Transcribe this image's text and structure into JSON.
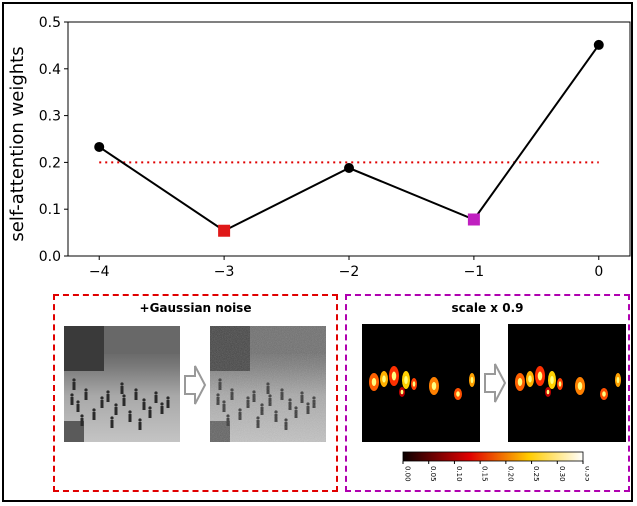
{
  "chart_data": {
    "type": "line",
    "ylabel": "self-attention weights",
    "xlim": [
      -4.25,
      0.25
    ],
    "ylim": [
      0.0,
      0.5
    ],
    "xticks": [
      "−4",
      "−3",
      "−2",
      "−1",
      "0"
    ],
    "yticks": [
      "0.0",
      "0.1",
      "0.2",
      "0.3",
      "0.4",
      "0.5"
    ],
    "grid": false,
    "series": [
      {
        "type": "line",
        "x": [
          -4,
          -3,
          -2,
          -1,
          0
        ],
        "y": [
          0.233,
          0.054,
          0.188,
          0.078,
          0.451
        ],
        "color": "#000000",
        "marker_colors": [
          "#000000",
          "#e01818",
          "#000000",
          "#c020c0",
          "#000000"
        ],
        "marker_shapes": [
          "circle",
          "square",
          "circle",
          "square",
          "circle"
        ]
      }
    ],
    "reference_line": {
      "y": 0.2,
      "x_from": -4,
      "x_to": 0,
      "style": "dotted",
      "color": "#e00000"
    }
  },
  "panels": {
    "noise": {
      "title": "+Gaussian noise",
      "border_color": "#e00000"
    },
    "scale": {
      "title": "scale x 0.9",
      "border_color": "#b000b0"
    }
  },
  "colorbar": {
    "ticks": [
      "0.00",
      "0.05",
      "0.10",
      "0.15",
      "0.20",
      "0.25",
      "0.30",
      "0.35"
    ],
    "colormap": "hot"
  }
}
